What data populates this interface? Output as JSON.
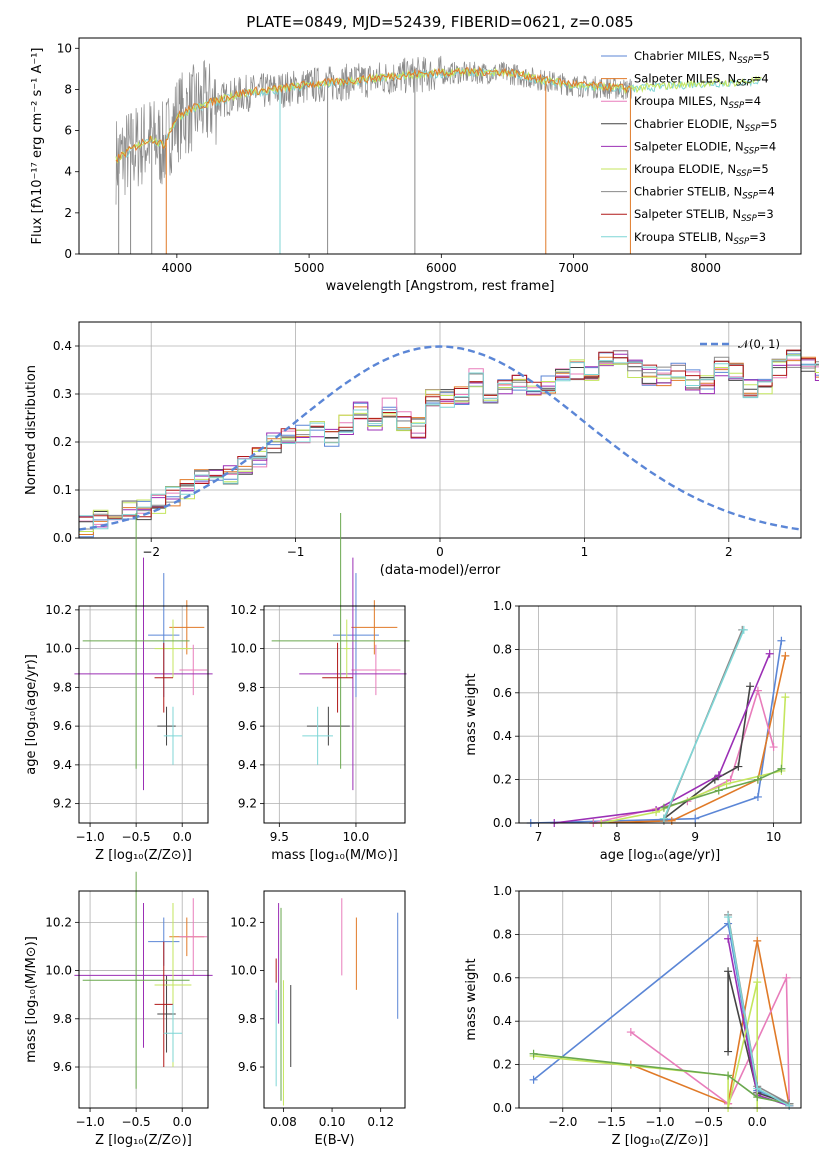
{
  "figure_title": "PLATE=0849, MJD=52439, FIBERID=0621, z=0.085",
  "colors": {
    "blue": "#5b86d6",
    "orange": "#e07a28",
    "pink": "#e87dbb",
    "dark": "#444444",
    "purple": "#9b2fb5",
    "lime": "#c4e65e",
    "gray": "#8a8a8a",
    "red": "#b01818",
    "cyan": "#7fd6d6",
    "green": "#6aa84f",
    "grid": "#b0b0b0"
  },
  "chart_data": [
    {
      "id": "spectrum",
      "type": "line",
      "xlabel": "wavelength [Angstrom, rest frame]",
      "ylabel": "Flux [fλ10⁻¹⁷ erg cm⁻² s⁻¹ A⁻¹]",
      "xlim": [
        3260,
        8720
      ],
      "ylim": [
        0,
        10.5
      ],
      "xticks": [
        4000,
        5000,
        6000,
        7000,
        8000
      ],
      "yticks": [
        0,
        2,
        4,
        6,
        8,
        10
      ],
      "grid": false,
      "legend_position": "top-right",
      "model_continuum": [
        [
          3550,
          4.6
        ],
        [
          3650,
          5.0
        ],
        [
          3800,
          5.6
        ],
        [
          3900,
          5.2
        ],
        [
          3950,
          6.0
        ],
        [
          4000,
          6.6
        ],
        [
          4100,
          7.0
        ],
        [
          4300,
          7.4
        ],
        [
          4500,
          7.8
        ],
        [
          4800,
          8.0
        ],
        [
          5000,
          8.2
        ],
        [
          5200,
          8.3
        ],
        [
          5500,
          8.5
        ],
        [
          5800,
          8.7
        ],
        [
          6100,
          8.8
        ],
        [
          6500,
          8.8
        ],
        [
          6800,
          8.4
        ],
        [
          7000,
          8.2
        ],
        [
          7200,
          8.1
        ],
        [
          7400,
          8.0
        ],
        [
          7600,
          8.1
        ],
        [
          7800,
          8.2
        ],
        [
          8000,
          8.3
        ],
        [
          8200,
          8.3
        ],
        [
          8400,
          8.4
        ]
      ],
      "legend": [
        {
          "label": "Chabrier MILES, N",
          "sub": "SSP",
          "value": "=5",
          "color": "blue"
        },
        {
          "label": "Salpeter MILES, N",
          "sub": "SSP",
          "value": "=4",
          "color": "orange"
        },
        {
          "label": "Kroupa MILES, N",
          "sub": "SSP",
          "value": "=4",
          "color": "pink"
        },
        {
          "label": "Chabrier ELODIE, N",
          "sub": "SSP",
          "value": "=5",
          "color": "dark"
        },
        {
          "label": "Salpeter ELODIE, N",
          "sub": "SSP",
          "value": "=4",
          "color": "purple"
        },
        {
          "label": "Kroupa ELODIE, N",
          "sub": "SSP",
          "value": "=5",
          "color": "lime"
        },
        {
          "label": "Chabrier STELIB, N",
          "sub": "SSP",
          "value": "=4",
          "color": "gray"
        },
        {
          "label": "Salpeter STELIB, N",
          "sub": "SSP",
          "value": "=3",
          "color": "red"
        },
        {
          "label": "Kroupa STELIB, N",
          "sub": "SSP",
          "value": "=3",
          "color": "cyan"
        }
      ]
    },
    {
      "id": "residual_hist",
      "type": "bar",
      "xlabel": "(data-model)/error",
      "ylabel": "Normed distribution",
      "xlim": [
        -2.5,
        2.5
      ],
      "ylim": [
        0,
        0.45
      ],
      "xticks": [
        -2,
        -1,
        0,
        1,
        2
      ],
      "yticks": [
        0.0,
        0.1,
        0.2,
        0.3,
        0.4
      ],
      "grid": true,
      "legend_position": "top-right",
      "legend": [
        {
          "label": "𝒩(0, 1)",
          "color": "blue",
          "style": "dashed"
        }
      ],
      "bin_width": 0.1,
      "bin_start": -2.5,
      "base_values": [
        0.025,
        0.04,
        0.055,
        0.06,
        0.06,
        0.07,
        0.085,
        0.1,
        0.12,
        0.13,
        0.135,
        0.155,
        0.17,
        0.2,
        0.21,
        0.22,
        0.23,
        0.21,
        0.235,
        0.27,
        0.23,
        0.27,
        0.245,
        0.23,
        0.29,
        0.29,
        0.3,
        0.33,
        0.28,
        0.32,
        0.33,
        0.31,
        0.32,
        0.33,
        0.35,
        0.35,
        0.365,
        0.37,
        0.35,
        0.34,
        0.34,
        0.35,
        0.33,
        0.32,
        0.36,
        0.35,
        0.31,
        0.32,
        0.35,
        0.37,
        0.365,
        0.35,
        0.33,
        0.3,
        0.3,
        0.25,
        0.26,
        0.27,
        0.25,
        0.24,
        0.2,
        0.2,
        0.18,
        0.19,
        0.17,
        0.16,
        0.145,
        0.14,
        0.13,
        0.125,
        0.12,
        0.1,
        0.09,
        0.085,
        0.08,
        0.07,
        0.06,
        0.05,
        0.04,
        0.03
      ],
      "gaussian": {
        "mean": 0,
        "sigma": 1
      }
    },
    {
      "id": "Z_vs_age",
      "type": "scatter",
      "xlabel": "Z [log₁₀(Z/Z⊙)]",
      "ylabel": "age  [log₁₀(age/yr)]",
      "xlim": [
        -1.12,
        0.28
      ],
      "ylim": [
        9.1,
        10.22
      ],
      "xticks": [
        -1.0,
        -0.5,
        0.0
      ],
      "yticks": [
        9.2,
        9.4,
        9.6,
        9.8,
        10.0,
        10.2
      ],
      "grid": true,
      "points": [
        {
          "series": "blue",
          "x": -0.2,
          "xerr": 0.17,
          "y": 10.07,
          "yerr": 0.32
        },
        {
          "series": "orange",
          "x": 0.05,
          "xerr": 0.19,
          "y": 10.11,
          "yerr": 0.14
        },
        {
          "series": "pink",
          "x": 0.12,
          "xerr": 0.15,
          "y": 9.89,
          "yerr": 0.13
        },
        {
          "series": "dark",
          "x": -0.17,
          "xerr": 0.1,
          "y": 9.6,
          "yerr": 0.1
        },
        {
          "series": "purple",
          "x": -0.42,
          "xerr": 0.75,
          "y": 9.87,
          "yerr": 0.6
        },
        {
          "series": "lime",
          "x": -0.1,
          "xerr": 0.2,
          "y": 10.0,
          "yerr": 0.15
        },
        {
          "series": "green",
          "x": -0.5,
          "xerr": 0.58,
          "y": 10.04,
          "yerr": 0.66
        },
        {
          "series": "red",
          "x": -0.2,
          "xerr": 0.1,
          "y": 9.85,
          "yerr": 0.18
        },
        {
          "series": "cyan",
          "x": -0.1,
          "xerr": 0.1,
          "y": 9.55,
          "yerr": 0.15
        }
      ]
    },
    {
      "id": "mass_vs_age",
      "type": "scatter",
      "xlabel": "mass [log₁₀(M/M⊙)]",
      "ylabel": "",
      "xlim": [
        9.4,
        10.32
      ],
      "ylim": [
        9.1,
        10.22
      ],
      "xticks": [
        9.5,
        10.0
      ],
      "yticks": [
        9.2,
        9.4,
        9.6,
        9.8,
        10.0,
        10.2
      ],
      "grid": true,
      "points": [
        {
          "series": "blue",
          "x": 10.0,
          "xerr": 0.15,
          "y": 10.07,
          "yerr": 0.32
        },
        {
          "series": "orange",
          "x": 10.12,
          "xerr": 0.15,
          "y": 10.11,
          "yerr": 0.14
        },
        {
          "series": "pink",
          "x": 10.13,
          "xerr": 0.16,
          "y": 9.89,
          "yerr": 0.13
        },
        {
          "series": "dark",
          "x": 9.82,
          "xerr": 0.14,
          "y": 9.6,
          "yerr": 0.1
        },
        {
          "series": "purple",
          "x": 9.98,
          "xerr": 0.35,
          "y": 9.87,
          "yerr": 0.6
        },
        {
          "series": "lime",
          "x": 9.94,
          "xerr": 0.02,
          "y": 10.0,
          "yerr": 0.15
        },
        {
          "series": "green",
          "x": 9.9,
          "xerr": 0.45,
          "y": 10.04,
          "yerr": 0.66
        },
        {
          "series": "red",
          "x": 9.88,
          "xerr": 0.1,
          "y": 9.85,
          "yerr": 0.18
        },
        {
          "series": "cyan",
          "x": 9.75,
          "xerr": 0.1,
          "y": 9.55,
          "yerr": 0.15
        }
      ]
    },
    {
      "id": "age_vs_weight",
      "type": "line",
      "xlabel": "age  [log₁₀(age/yr)]",
      "ylabel": "mass weight",
      "xlim": [
        6.75,
        10.35
      ],
      "ylim": [
        0,
        1.0
      ],
      "xticks": [
        7,
        8,
        9,
        10
      ],
      "yticks": [
        0.0,
        0.2,
        0.4,
        0.6,
        0.8,
        1.0
      ],
      "grid": true,
      "series": [
        {
          "name": "Chabrier MILES",
          "color": "blue",
          "points": [
            [
              6.9,
              0.0
            ],
            [
              9.0,
              0.02
            ],
            [
              9.8,
              0.12
            ],
            [
              10.1,
              0.84
            ]
          ]
        },
        {
          "name": "Salpeter MILES",
          "color": "orange",
          "points": [
            [
              7.7,
              0.0
            ],
            [
              8.7,
              0.01
            ],
            [
              9.8,
              0.2
            ],
            [
              10.15,
              0.77
            ]
          ]
        },
        {
          "name": "Kroupa MILES",
          "color": "pink",
          "points": [
            [
              7.7,
              0.0
            ],
            [
              8.9,
              0.1
            ],
            [
              9.45,
              0.2
            ],
            [
              9.8,
              0.61
            ],
            [
              10.0,
              0.35
            ]
          ]
        },
        {
          "name": "Chabrier ELODIE",
          "color": "dark",
          "points": [
            [
              8.6,
              0.02
            ],
            [
              9.25,
              0.2
            ],
            [
              9.55,
              0.26
            ],
            [
              9.7,
              0.63
            ]
          ]
        },
        {
          "name": "Salpeter ELODIE",
          "color": "purple",
          "points": [
            [
              7.2,
              0.0
            ],
            [
              8.5,
              0.06
            ],
            [
              9.3,
              0.22
            ],
            [
              9.95,
              0.78
            ]
          ]
        },
        {
          "name": "Kroupa ELODIE",
          "color": "lime",
          "points": [
            [
              7.8,
              0.0
            ],
            [
              8.5,
              0.05
            ],
            [
              9.4,
              0.18
            ],
            [
              10.1,
              0.24
            ],
            [
              10.15,
              0.58
            ]
          ]
        },
        {
          "name": "Chabrier STELIB",
          "color": "green",
          "points": [
            [
              8.6,
              0.07
            ],
            [
              9.3,
              0.15
            ],
            [
              9.8,
              0.2
            ],
            [
              10.1,
              0.25
            ]
          ]
        },
        {
          "name": "Salpeter STELIB",
          "color": "gray",
          "points": [
            [
              8.6,
              0.01
            ],
            [
              9.6,
              0.89
            ]
          ]
        },
        {
          "name": "Kroupa STELIB",
          "color": "cyan",
          "points": [
            [
              8.6,
              0.02
            ],
            [
              9.62,
              0.89
            ]
          ]
        }
      ]
    },
    {
      "id": "Z_vs_mass",
      "type": "scatter",
      "xlabel": "Z [log₁₀(Z/Z⊙)]",
      "ylabel": "mass [log₁₀(M/M⊙)]",
      "xlim": [
        -1.12,
        0.28
      ],
      "ylim": [
        9.43,
        10.33
      ],
      "xticks": [
        -1.0,
        -0.5,
        0.0
      ],
      "yticks": [
        9.6,
        9.8,
        10.0,
        10.2
      ],
      "grid": true,
      "points": [
        {
          "series": "blue",
          "x": -0.2,
          "xerr": 0.17,
          "y": 10.12,
          "yerr": 0.1
        },
        {
          "series": "orange",
          "x": 0.05,
          "xerr": 0.19,
          "y": 10.14,
          "yerr": 0.08
        },
        {
          "series": "pink",
          "x": 0.12,
          "xerr": 0.15,
          "y": 10.14,
          "yerr": 0.16
        },
        {
          "series": "dark",
          "x": -0.17,
          "xerr": 0.1,
          "y": 9.82,
          "yerr": 0.16
        },
        {
          "series": "purple",
          "x": -0.42,
          "xerr": 0.75,
          "y": 9.98,
          "yerr": 0.3
        },
        {
          "series": "lime",
          "x": -0.1,
          "xerr": 0.2,
          "y": 9.94,
          "yerr": 0.34
        },
        {
          "series": "green",
          "x": -0.5,
          "xerr": 0.58,
          "y": 9.96,
          "yerr": 0.45
        },
        {
          "series": "red",
          "x": -0.2,
          "xerr": 0.1,
          "y": 9.86,
          "yerr": 0.26
        },
        {
          "series": "cyan",
          "x": -0.1,
          "xerr": 0.1,
          "y": 9.74,
          "yerr": 0.12
        }
      ]
    },
    {
      "id": "ebv_vs_mass",
      "type": "scatter",
      "xlabel": "E(B-V)",
      "ylabel": "",
      "xlim": [
        0.072,
        0.13
      ],
      "ylim": [
        9.43,
        10.33
      ],
      "xticks": [
        0.08,
        0.1,
        0.12
      ],
      "yticks": [
        9.6,
        9.8,
        10.0,
        10.2
      ],
      "grid": false,
      "points": [
        {
          "series": "blue",
          "x": 0.127,
          "y": 10.02,
          "yerr": 0.22
        },
        {
          "series": "orange",
          "x": 0.11,
          "y": 10.07,
          "yerr": 0.15
        },
        {
          "series": "pink",
          "x": 0.104,
          "y": 10.14,
          "yerr": 0.16
        },
        {
          "series": "dark",
          "x": 0.083,
          "y": 9.77,
          "yerr": 0.17
        },
        {
          "series": "purple",
          "x": 0.078,
          "y": 10.03,
          "yerr": 0.25
        },
        {
          "series": "lime",
          "x": 0.08,
          "y": 9.7,
          "yerr": 0.26
        },
        {
          "series": "green",
          "x": 0.079,
          "y": 9.86,
          "yerr": 0.4
        },
        {
          "series": "red",
          "x": 0.077,
          "y": 10.0,
          "yerr": 0.05
        },
        {
          "series": "cyan",
          "x": 0.077,
          "y": 9.72,
          "yerr": 0.2
        }
      ]
    },
    {
      "id": "Z_vs_weight",
      "type": "line",
      "xlabel": "Z [log₁₀(Z/Z⊙)]",
      "ylabel": "mass weight",
      "xlim": [
        -2.45,
        0.45
      ],
      "ylim": [
        0,
        1.0
      ],
      "xticks": [
        -2.0,
        -1.5,
        -1.0,
        -0.5,
        0.0
      ],
      "yticks": [
        0.0,
        0.2,
        0.4,
        0.6,
        0.8,
        1.0
      ],
      "grid": true,
      "series": [
        {
          "name": "Chabrier MILES",
          "color": "blue",
          "points": [
            [
              -2.3,
              0.13
            ],
            [
              -0.3,
              0.85
            ],
            [
              0.0,
              0.08
            ],
            [
              0.33,
              0.02
            ]
          ]
        },
        {
          "name": "Salpeter MILES",
          "color": "orange",
          "points": [
            [
              -1.3,
              0.2
            ],
            [
              -0.3,
              0.02
            ],
            [
              0.0,
              0.77
            ],
            [
              0.33,
              0.01
            ]
          ]
        },
        {
          "name": "Kroupa MILES",
          "color": "pink",
          "points": [
            [
              -1.3,
              0.35
            ],
            [
              -0.3,
              0.02
            ],
            [
              0.3,
              0.6
            ],
            [
              0.33,
              0.01
            ]
          ]
        },
        {
          "name": "Chabrier ELODIE",
          "color": "dark",
          "points": [
            [
              -0.3,
              0.26
            ],
            [
              -0.3,
              0.63
            ],
            [
              0.0,
              0.07
            ],
            [
              0.33,
              0.02
            ]
          ]
        },
        {
          "name": "Salpeter ELODIE",
          "color": "purple",
          "points": [
            [
              -0.3,
              0.78
            ],
            [
              0.0,
              0.06
            ],
            [
              0.33,
              0.01
            ]
          ]
        },
        {
          "name": "Kroupa ELODIE",
          "color": "lime",
          "points": [
            [
              -2.3,
              0.24
            ],
            [
              -0.3,
              0.15
            ],
            [
              -0.3,
              0.0
            ],
            [
              0.0,
              0.58
            ],
            [
              0.0,
              0.0
            ]
          ]
        },
        {
          "name": "Chabrier STELIB",
          "color": "green",
          "points": [
            [
              -2.3,
              0.25
            ],
            [
              -0.3,
              0.15
            ],
            [
              0.0,
              0.05
            ],
            [
              0.33,
              0.02
            ]
          ]
        },
        {
          "name": "Salpeter STELIB",
          "color": "gray",
          "points": [
            [
              -0.3,
              0.89
            ],
            [
              0.0,
              0.1
            ],
            [
              0.33,
              0.02
            ]
          ]
        },
        {
          "name": "Kroupa STELIB",
          "color": "cyan",
          "points": [
            [
              -0.3,
              0.88
            ],
            [
              0.0,
              0.09
            ],
            [
              0.33,
              0.01
            ]
          ]
        }
      ]
    }
  ]
}
